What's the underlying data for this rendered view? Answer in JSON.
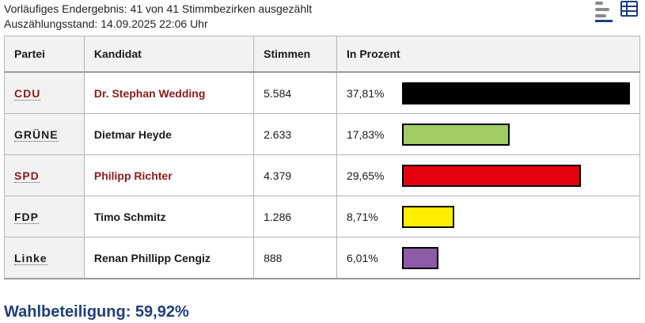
{
  "status": {
    "line1": "Vorläufiges Endergebnis: 41 von 41 Stimmbezirken ausgezählt",
    "line2": "Auszählungsstand: 14.09.2025 22:06 Uhr"
  },
  "view_toggle": {
    "chart_icon": "bar-chart-icon",
    "table_icon": "table-icon"
  },
  "table": {
    "headers": {
      "party": "Partei",
      "candidate": "Kandidat",
      "votes": "Stimmen",
      "percent": "In Prozent"
    },
    "rows": [
      {
        "party": "CDU",
        "candidate": "Dr. Stephan Wedding",
        "votes": "5.584",
        "percent": "37,81%",
        "share": 37.81,
        "color": "#000000",
        "winner": true
      },
      {
        "party": "GRÜNE",
        "candidate": "Dietmar Heyde",
        "votes": "2.633",
        "percent": "17,83%",
        "share": 17.83,
        "color": "#a2cc64",
        "winner": false
      },
      {
        "party": "SPD",
        "candidate": "Philipp Richter",
        "votes": "4.379",
        "percent": "29,65%",
        "share": 29.65,
        "color": "#e3000f",
        "winner": true
      },
      {
        "party": "FDP",
        "candidate": "Timo Schmitz",
        "votes": "1.286",
        "percent": "8,71%",
        "share": 8.71,
        "color": "#ffed00",
        "winner": false
      },
      {
        "party": "Linke",
        "candidate": "Renan Phillipp Cengiz",
        "votes": "888",
        "percent": "6,01%",
        "share": 6.01,
        "color": "#8e5ba6",
        "winner": false
      }
    ]
  },
  "turnout": "Wahlbeteiligung: 59,92%"
}
